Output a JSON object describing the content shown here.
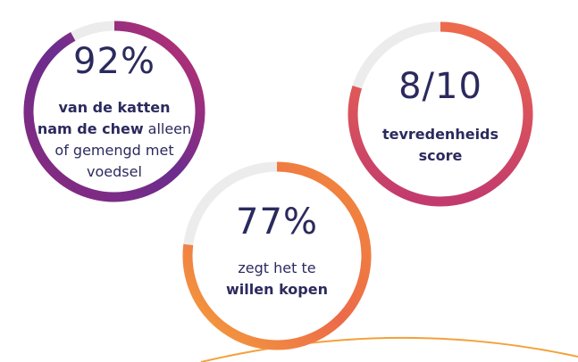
{
  "stats": [
    {
      "value": 92,
      "label": "92%",
      "lines": [
        [
          {
            "text": "van de katten",
            "bold": true
          }
        ],
        [
          {
            "text": "nam de chew",
            "bold": true
          },
          {
            "text": "alleen",
            "bold": false
          }
        ],
        [
          {
            "text": "of gemengd met",
            "bold": false
          }
        ],
        [
          {
            "text": "voedsel",
            "bold": false
          }
        ]
      ]
    },
    {
      "value": 8,
      "max": 10,
      "label": "8/10",
      "lines": [
        [
          {
            "text": "tevredenheids",
            "bold": true
          }
        ],
        [
          {
            "text": "score",
            "bold": true
          }
        ]
      ]
    },
    {
      "value": 77,
      "label": "77%",
      "lines": [
        [
          {
            "text": "zegt het te",
            "bold": false
          }
        ],
        [
          {
            "text": "willen kopen",
            "bold": true
          }
        ]
      ]
    }
  ]
}
